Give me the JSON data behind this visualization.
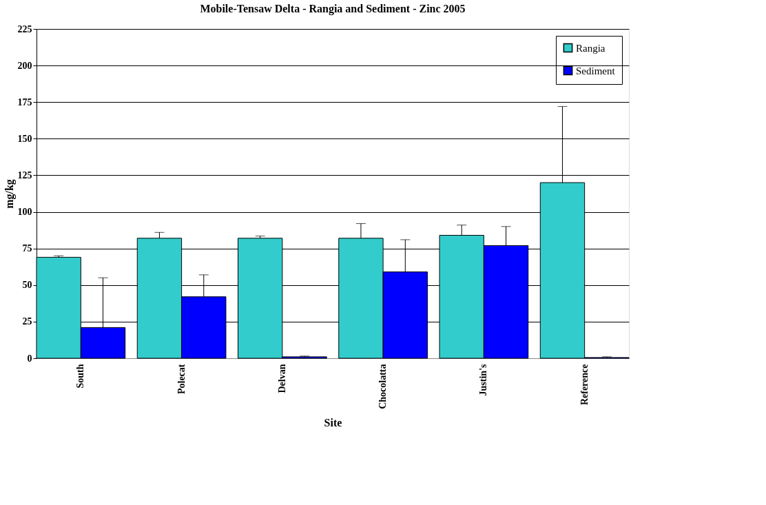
{
  "chart_data": {
    "type": "bar",
    "title": "Mobile-Tensaw Delta  - Rangia and Sediment - Zinc 2005",
    "xlabel": "Site",
    "ylabel": "mg/kg",
    "categories": [
      "South",
      "Polecat",
      "Delvan",
      "Chocolatta",
      "Justin's",
      "Reference"
    ],
    "series": [
      {
        "name": "Rangia",
        "color": "#33cccc",
        "values": [
          69,
          82,
          82,
          82,
          84,
          120
        ],
        "errors": [
          [
            69,
            70
          ],
          [
            82,
            86
          ],
          [
            82,
            83.5
          ],
          [
            82,
            92
          ],
          [
            84,
            91
          ],
          [
            120,
            172
          ]
        ]
      },
      {
        "name": "Sediment",
        "color": "#0000ff",
        "values": [
          21,
          42,
          1,
          59,
          77,
          0.5
        ],
        "errors": [
          [
            21,
            55
          ],
          [
            42,
            57
          ],
          [
            1,
            1.5
          ],
          [
            59,
            81
          ],
          [
            77,
            90
          ],
          [
            0.5,
            1
          ]
        ]
      }
    ],
    "ylim": [
      0,
      225
    ],
    "yticks": [
      0,
      25,
      50,
      75,
      100,
      125,
      150,
      175,
      200,
      225
    ],
    "grid": "y",
    "legend": "top right"
  }
}
